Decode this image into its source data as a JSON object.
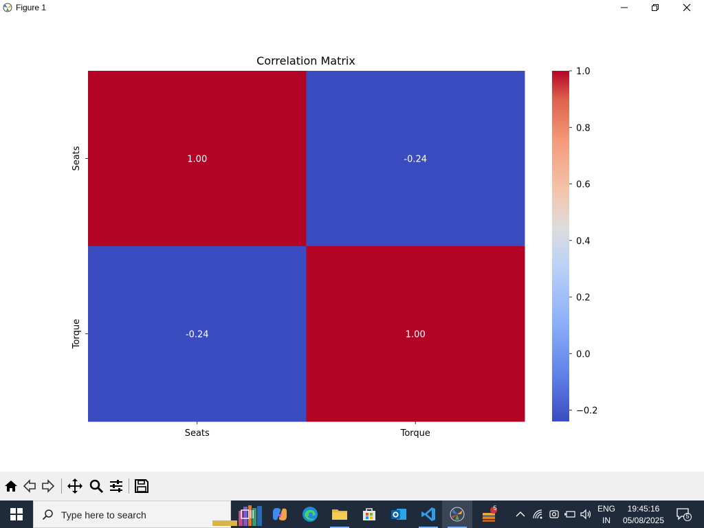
{
  "window": {
    "title": "Figure 1",
    "minimize_glyph": "—",
    "restore_glyph": "❐",
    "close_glyph": "✕"
  },
  "chart_data": {
    "type": "heatmap",
    "title": "Correlation Matrix",
    "rows": [
      "Seats",
      "Torque"
    ],
    "columns": [
      "Seats",
      "Torque"
    ],
    "values": [
      [
        1.0,
        -0.24
      ],
      [
        -0.24,
        1.0
      ]
    ],
    "annotations": [
      [
        "1.00",
        "-0.24"
      ],
      [
        "-0.24",
        "1.00"
      ]
    ],
    "colormap": "coolwarm",
    "colors": {
      "high": "#b40426",
      "low": "#3b4cc0"
    },
    "colorbar": {
      "vmin": -0.24,
      "vmax": 1.0,
      "ticks": [
        1.0,
        0.8,
        0.6,
        0.4,
        0.2,
        0.0,
        -0.2
      ],
      "tick_labels": [
        "1.0",
        "0.8",
        "0.6",
        "0.4",
        "0.2",
        "0.0",
        "−0.2"
      ]
    }
  },
  "toolbar": {
    "buttons": [
      "home-icon",
      "back-arrow-icon",
      "forward-arrow-icon",
      "pan-move-icon",
      "zoom-magnifier-icon",
      "configure-subplots-icon",
      "save-floppy-icon"
    ]
  },
  "taskbar": {
    "search_placeholder": "Type here to search",
    "apps": [
      "task-view-icon",
      "copilot-icon",
      "edge-browser-icon",
      "file-explorer-icon",
      "microsoft-store-icon",
      "outlook-icon",
      "vscode-icon",
      "python-figure-icon",
      "stack-app-icon"
    ],
    "stack_badge": "5",
    "language_top": "ENG",
    "language_bottom": "IN",
    "time": "19:45:16",
    "date": "05/08/2025",
    "notification_count": "5"
  }
}
